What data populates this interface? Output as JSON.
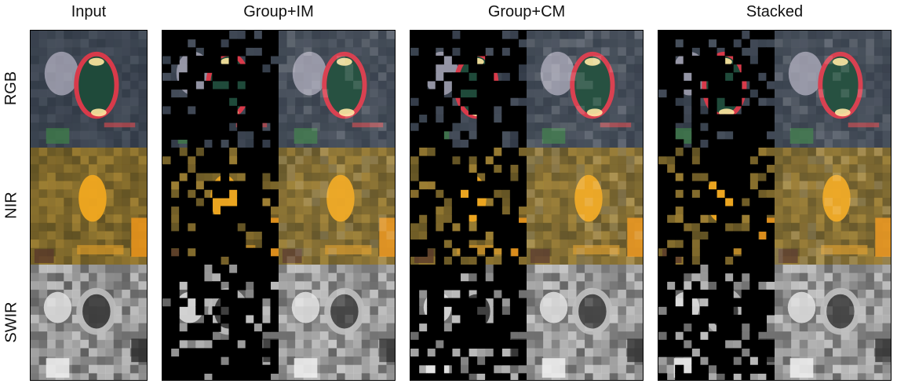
{
  "columns": [
    {
      "title": "Input"
    },
    {
      "title": "Group+IM"
    },
    {
      "title": "Group+CM"
    },
    {
      "title": "Stacked"
    }
  ],
  "rows": [
    {
      "label": "RGB"
    },
    {
      "label": "NIR"
    },
    {
      "label": "SWIR"
    }
  ],
  "colors": {
    "rgb_background": "#3a4452",
    "nir_background": "#7a6a38",
    "swir_background": "#7a7a7a",
    "mask": "#000000"
  }
}
